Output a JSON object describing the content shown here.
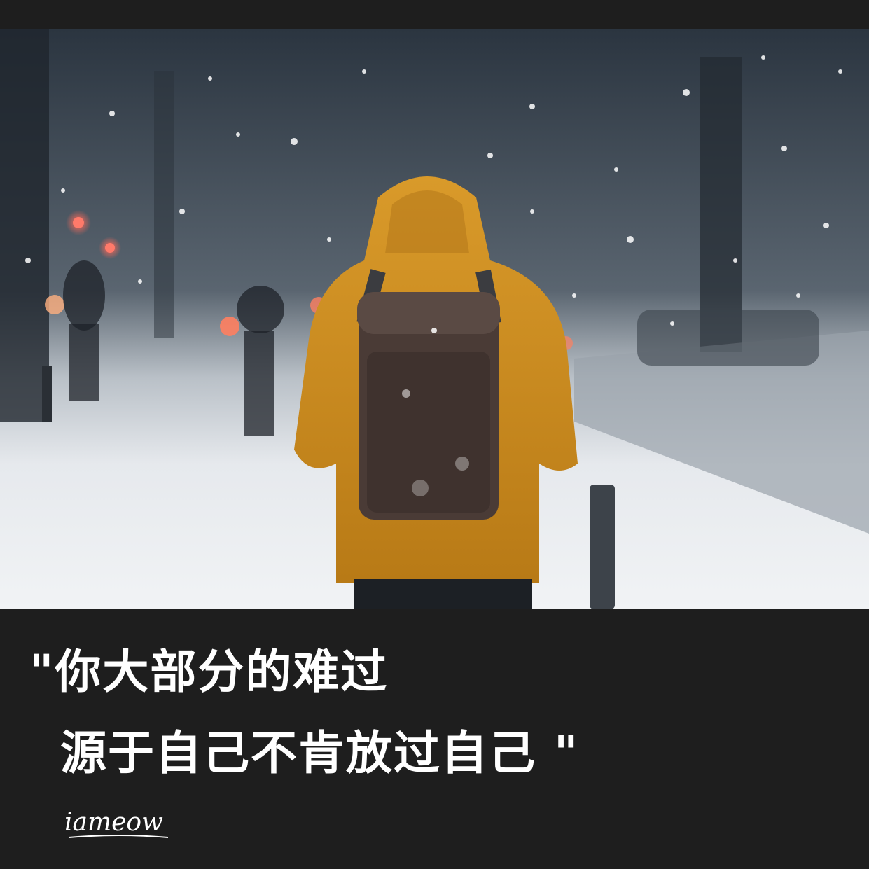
{
  "caption": {
    "line1": "\"你大部分的难过",
    "line2": "源于自己不肯放过自己 \""
  },
  "logo": {
    "text": "iameow"
  },
  "colors": {
    "background": "#1e1e1e",
    "jacket": "#c98a1e",
    "backpack": "#4a3b36",
    "text": "#ffffff"
  }
}
